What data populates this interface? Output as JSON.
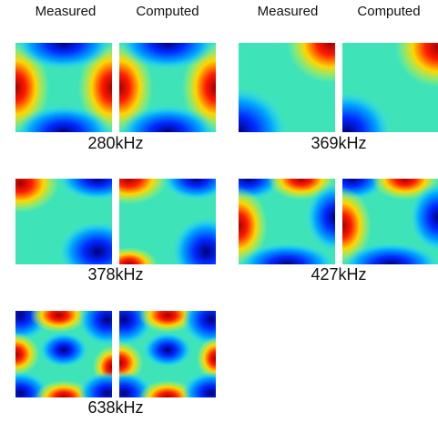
{
  "column_headers": [
    [
      "Measured",
      "Computed"
    ],
    [
      "Measured",
      "Computed"
    ]
  ],
  "panels": [
    {
      "frequency": "280kHz"
    },
    {
      "frequency": "369kHz"
    },
    {
      "frequency": "378kHz"
    },
    {
      "frequency": "427kHz"
    },
    {
      "frequency": "638kHz"
    }
  ]
}
